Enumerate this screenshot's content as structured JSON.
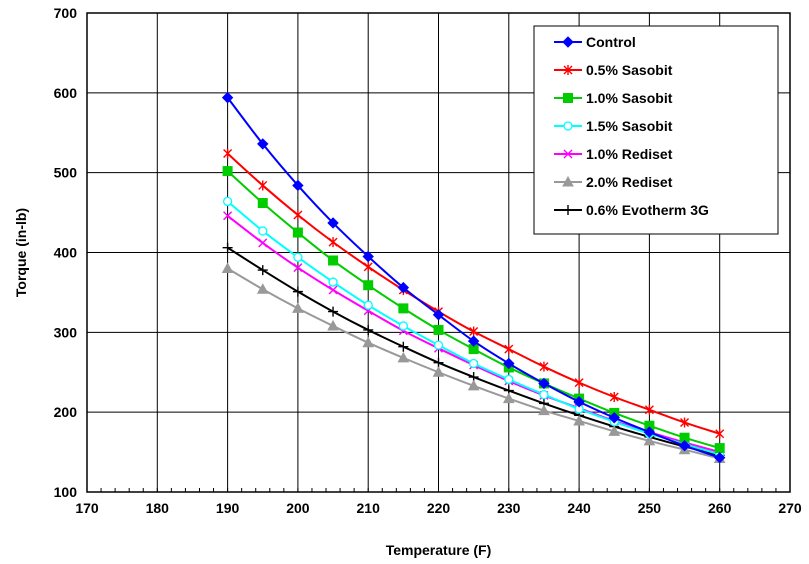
{
  "chart_data": {
    "type": "line",
    "xlabel": "Temperature (F)",
    "ylabel": "Torque (in-lb)",
    "xlim": [
      170,
      270
    ],
    "ylim": [
      100,
      700
    ],
    "xticks": [
      170,
      180,
      190,
      200,
      210,
      220,
      230,
      240,
      250,
      260,
      270
    ],
    "yticks": [
      100,
      200,
      300,
      400,
      500,
      600,
      700
    ],
    "grid": true,
    "legend_position": "top-right",
    "x": [
      190,
      195,
      200,
      205,
      210,
      215,
      220,
      225,
      230,
      235,
      240,
      245,
      250,
      255,
      260
    ],
    "series": [
      {
        "name": "Control",
        "color": "#0000FF",
        "marker": "diamond",
        "values": [
          594,
          536,
          484,
          437,
          395,
          356,
          322,
          289,
          261,
          236,
          213,
          193,
          175,
          158,
          143
        ]
      },
      {
        "name": "0.5% Sasobit",
        "color": "#FF0000",
        "marker": "asterisk",
        "values": [
          524,
          484,
          447,
          413,
          382,
          353,
          326,
          301,
          279,
          257,
          237,
          219,
          203,
          187,
          173
        ]
      },
      {
        "name": "1.0% Sasobit",
        "color": "#00CC00",
        "marker": "square",
        "values": [
          502,
          462,
          425,
          390,
          359,
          330,
          303,
          279,
          256,
          236,
          217,
          199,
          183,
          168,
          155
        ]
      },
      {
        "name": "1.5% Sasobit",
        "color": "#00FFFF",
        "marker": "circle",
        "values": [
          464,
          427,
          394,
          363,
          334,
          308,
          284,
          261,
          241,
          222,
          204,
          188,
          173,
          160,
          147
        ]
      },
      {
        "name": "1.0% Rediset",
        "color": "#FF00FF",
        "marker": "x",
        "values": [
          446,
          412,
          381,
          353,
          327,
          302,
          280,
          259,
          239,
          221,
          205,
          189,
          175,
          162,
          150
        ]
      },
      {
        "name": "2.0% Rediset",
        "color": "#999999",
        "marker": "triangle",
        "values": [
          380,
          354,
          330,
          308,
          287,
          268,
          250,
          233,
          217,
          202,
          189,
          176,
          164,
          153,
          142
        ]
      },
      {
        "name": "0.6% Evotherm 3G",
        "color": "#000000",
        "marker": "plus",
        "values": [
          406,
          378,
          351,
          326,
          303,
          282,
          262,
          244,
          227,
          211,
          196,
          182,
          169,
          157,
          146
        ]
      }
    ]
  }
}
